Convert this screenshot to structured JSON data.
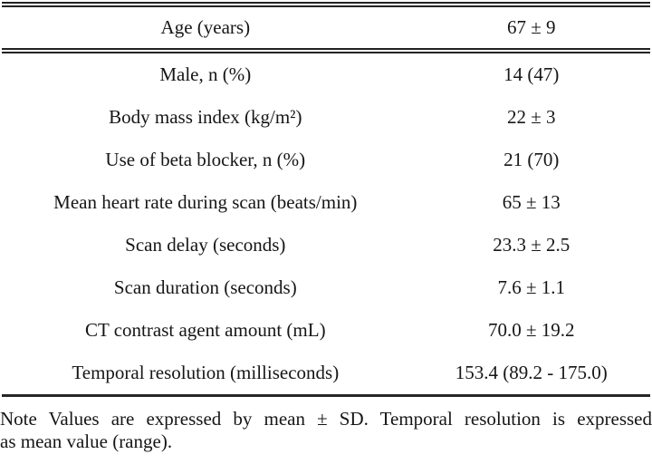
{
  "table": {
    "rows": [
      {
        "label": "Age (years)",
        "value": "67 ± 9"
      },
      {
        "label": "Male, n (%)",
        "value": "14 (47)"
      },
      {
        "label": "Body mass index (kg/m²)",
        "value": "22 ± 3"
      },
      {
        "label": "Use of beta blocker, n (%)",
        "value": "21 (70)"
      },
      {
        "label": "Mean heart rate during scan (beats/min)",
        "value": "65 ± 13"
      },
      {
        "label": "Scan delay (seconds)",
        "value": "23.3 ± 2.5"
      },
      {
        "label": "Scan duration (seconds)",
        "value": "7.6 ± 1.1"
      },
      {
        "label": "CT contrast agent amount (mL)",
        "value": "70.0 ± 19.2"
      },
      {
        "label": "Temporal resolution (milliseconds)",
        "value": "153.4 (89.2 - 175.0)"
      }
    ]
  },
  "note": {
    "line1": "Note Values are expressed by mean ± SD. Temporal resolution is expressed",
    "line2": "as mean value (range)."
  },
  "colors": {
    "text": "#161616",
    "rule": "#222222",
    "background": "#ffffff"
  }
}
